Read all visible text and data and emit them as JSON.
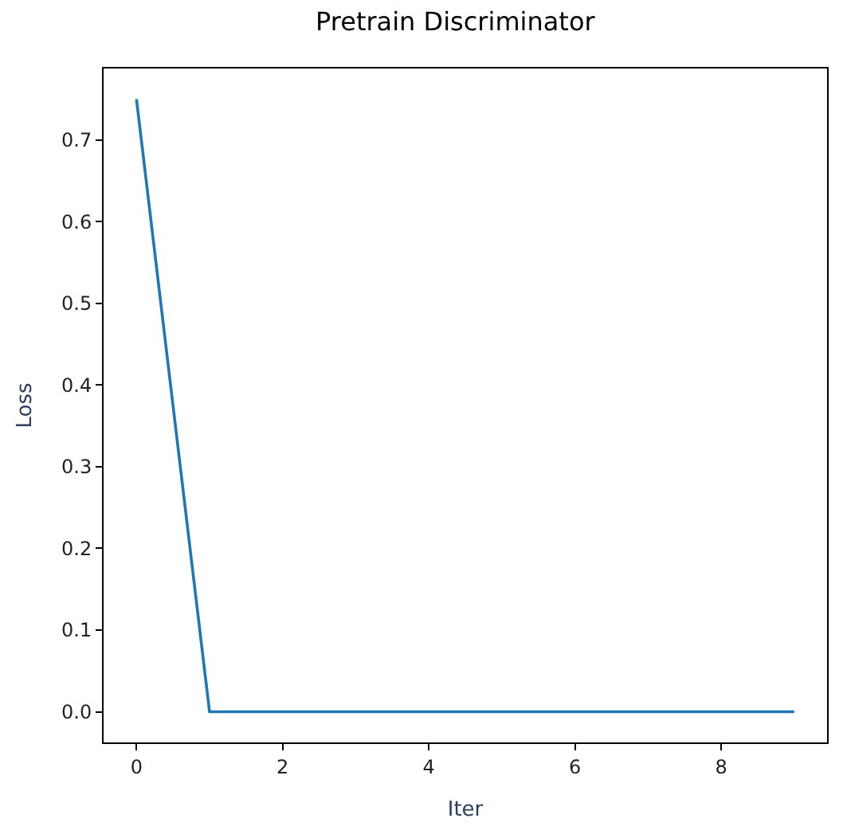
{
  "chart_data": {
    "type": "line",
    "title": "Pretrain Discriminator",
    "xlabel": "Iter",
    "ylabel": "Loss",
    "x": [
      0,
      1,
      2,
      3,
      4,
      5,
      6,
      7,
      8,
      9
    ],
    "series": [
      {
        "color": "#1f77b4",
        "values": [
          0.75,
          0.0,
          0.0,
          0.0,
          0.0,
          0.0,
          0.0,
          0.0,
          0.0,
          0.0
        ]
      }
    ],
    "xlim": [
      -0.45,
      9.45
    ],
    "xticks": [
      0,
      2,
      4,
      6,
      8
    ],
    "ylim": [
      -0.0375,
      0.7875
    ],
    "yticks": [
      "0.0",
      0.1,
      0.2,
      0.3,
      0.4,
      0.5,
      0.6,
      0.7
    ],
    "marker": "none",
    "line_style": "solid"
  }
}
